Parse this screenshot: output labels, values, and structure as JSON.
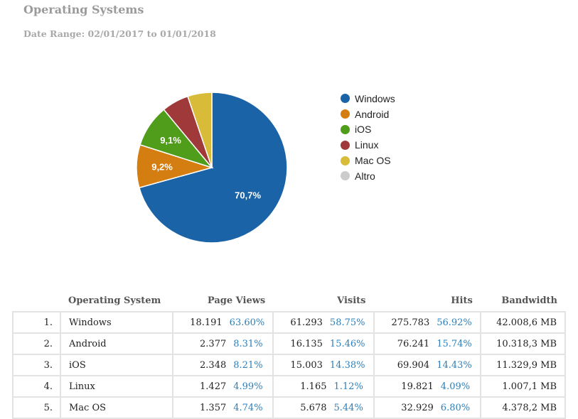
{
  "page": {
    "title": "Operating Systems",
    "date_range": "Date Range: 02/01/2017 to 01/01/2018"
  },
  "chart_data": {
    "type": "pie",
    "categories": [
      "Windows",
      "Android",
      "iOS",
      "Linux",
      "Mac OS",
      "Altro"
    ],
    "values": [
      70.7,
      9.2,
      9.1,
      5.8,
      5.2,
      0.0
    ],
    "data_labels": [
      "70,7%",
      "9,2%",
      "9,1%",
      "",
      "",
      ""
    ],
    "colors": [
      "#1a63a6",
      "#d47e12",
      "#4f9d1a",
      "#a03a3a",
      "#d9bb3a",
      "#cccccc"
    ],
    "legend_position": "right"
  },
  "table": {
    "headers": {
      "os": "Operating System",
      "page_views": "Page Views",
      "visits": "Visits",
      "hits": "Hits",
      "bandwidth": "Bandwidth"
    },
    "rows": [
      {
        "rank": "1.",
        "os": "Windows",
        "pv": "18.191",
        "pv_pct": "63.60%",
        "visits": "61.293",
        "visits_pct": "58.75%",
        "hits": "275.783",
        "hits_pct": "56.92%",
        "bw": "42.008,6 MB"
      },
      {
        "rank": "2.",
        "os": "Android",
        "pv": "2.377",
        "pv_pct": "8.31%",
        "visits": "16.135",
        "visits_pct": "15.46%",
        "hits": "76.241",
        "hits_pct": "15.74%",
        "bw": "10.318,3 MB"
      },
      {
        "rank": "3.",
        "os": "iOS",
        "pv": "2.348",
        "pv_pct": "8.21%",
        "visits": "15.003",
        "visits_pct": "14.38%",
        "hits": "69.904",
        "hits_pct": "14.43%",
        "bw": "11.329,9 MB"
      },
      {
        "rank": "4.",
        "os": "Linux",
        "pv": "1.427",
        "pv_pct": "4.99%",
        "visits": "1.165",
        "visits_pct": "1.12%",
        "hits": "19.821",
        "hits_pct": "4.09%",
        "bw": "1.007,1 MB"
      },
      {
        "rank": "5.",
        "os": "Mac OS",
        "pv": "1.357",
        "pv_pct": "4.74%",
        "visits": "5.678",
        "visits_pct": "5.44%",
        "hits": "32.929",
        "hits_pct": "6.80%",
        "bw": "4.378,2 MB"
      }
    ]
  }
}
